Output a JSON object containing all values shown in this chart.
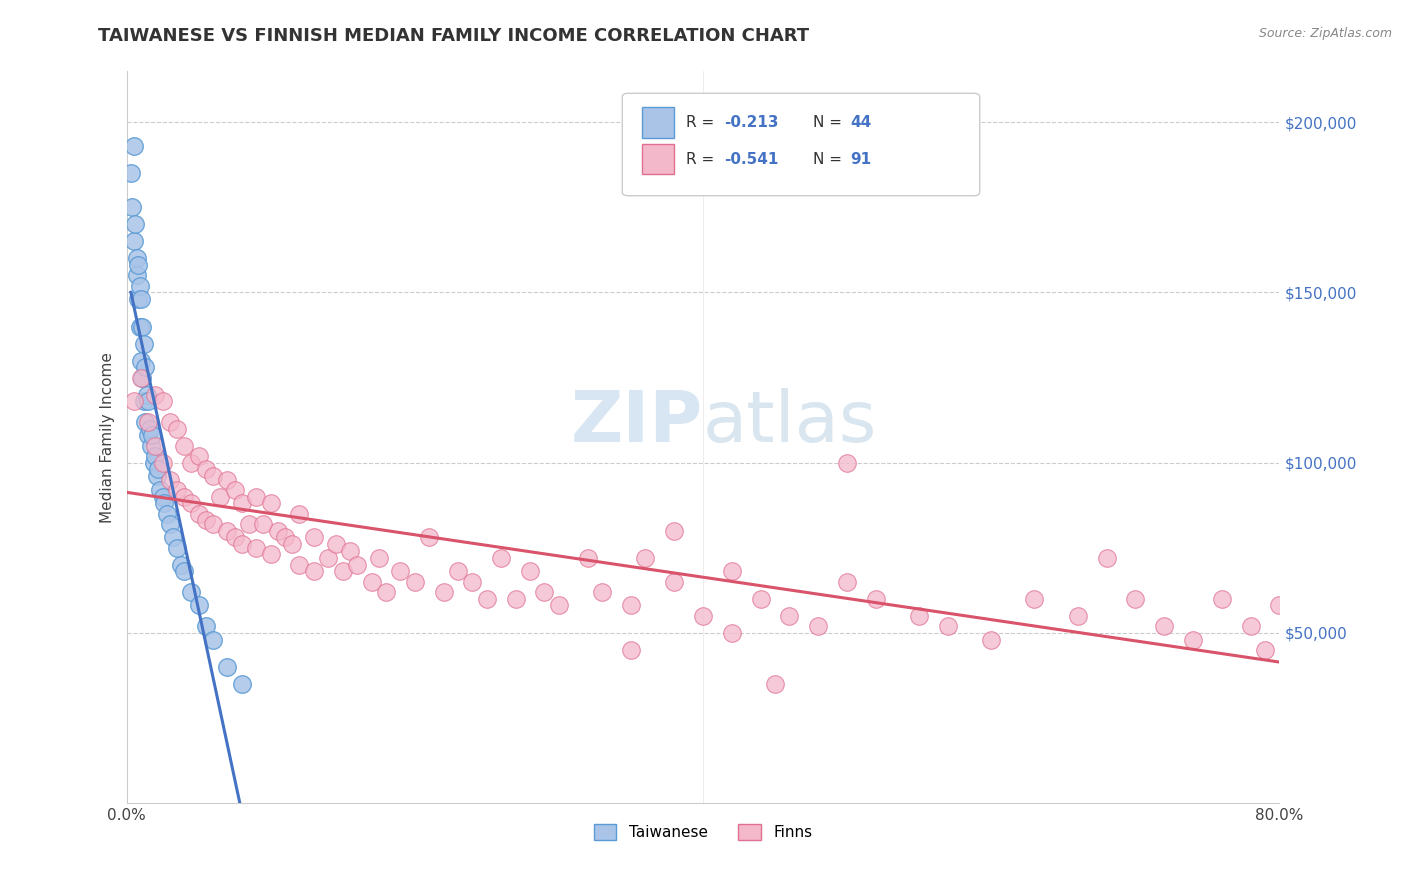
{
  "title": "TAIWANESE VS FINNISH MEDIAN FAMILY INCOME CORRELATION CHART",
  "source": "Source: ZipAtlas.com",
  "ylabel": "Median Family Income",
  "x_min": 0.0,
  "x_max": 80.0,
  "y_min": 0,
  "y_max": 215000,
  "y_ticks": [
    0,
    50000,
    100000,
    150000,
    200000
  ],
  "x_tick_left": "0.0%",
  "x_tick_right": "80.0%",
  "taiwanese_color": "#aac4e8",
  "finns_color": "#f4b8cb",
  "taiwanese_edge": "#5b9bd5",
  "finns_edge": "#e07090",
  "regression_blue_color": "#4472c4",
  "regression_pink_color": "#d9536a",
  "watermark_zip": "ZIP",
  "watermark_atlas": "atlas",
  "legend_R_taiwanese": "-0.213",
  "legend_N_taiwanese": "44",
  "legend_R_finns": "-0.541",
  "legend_N_finns": "91",
  "background_color": "#ffffff",
  "grid_color": "#cccccc",
  "taiwanese_scatter_x": [
    0.3,
    0.4,
    0.5,
    0.5,
    0.6,
    0.7,
    0.7,
    0.8,
    0.8,
    0.9,
    0.9,
    1.0,
    1.0,
    1.1,
    1.1,
    1.2,
    1.2,
    1.3,
    1.3,
    1.4,
    1.5,
    1.5,
    1.6,
    1.7,
    1.8,
    1.9,
    2.0,
    2.1,
    2.2,
    2.3,
    2.5,
    2.6,
    2.8,
    3.0,
    3.2,
    3.5,
    3.8,
    4.0,
    4.5,
    5.0,
    5.5,
    6.0,
    7.0,
    8.0
  ],
  "taiwanese_scatter_y": [
    185000,
    175000,
    193000,
    165000,
    170000,
    160000,
    155000,
    158000,
    148000,
    152000,
    140000,
    148000,
    130000,
    140000,
    125000,
    135000,
    118000,
    128000,
    112000,
    120000,
    118000,
    108000,
    110000,
    105000,
    108000,
    100000,
    102000,
    96000,
    98000,
    92000,
    90000,
    88000,
    85000,
    82000,
    78000,
    75000,
    70000,
    68000,
    62000,
    58000,
    52000,
    48000,
    40000,
    35000
  ],
  "finns_scatter_x": [
    0.5,
    1.0,
    1.5,
    2.0,
    2.0,
    2.5,
    2.5,
    3.0,
    3.0,
    3.5,
    3.5,
    4.0,
    4.0,
    4.5,
    4.5,
    5.0,
    5.0,
    5.5,
    5.5,
    6.0,
    6.0,
    6.5,
    7.0,
    7.0,
    7.5,
    7.5,
    8.0,
    8.0,
    8.5,
    9.0,
    9.0,
    9.5,
    10.0,
    10.0,
    10.5,
    11.0,
    11.5,
    12.0,
    12.0,
    13.0,
    13.0,
    14.0,
    14.5,
    15.0,
    15.5,
    16.0,
    17.0,
    17.5,
    18.0,
    19.0,
    20.0,
    21.0,
    22.0,
    23.0,
    24.0,
    25.0,
    26.0,
    27.0,
    28.0,
    29.0,
    30.0,
    32.0,
    33.0,
    35.0,
    36.0,
    38.0,
    40.0,
    42.0,
    44.0,
    46.0,
    48.0,
    50.0,
    52.0,
    55.0,
    57.0,
    60.0,
    63.0,
    66.0,
    68.0,
    70.0,
    72.0,
    74.0,
    76.0,
    78.0,
    79.0,
    80.0,
    35.0,
    38.0,
    42.0,
    45.0,
    50.0
  ],
  "finns_scatter_y": [
    118000,
    125000,
    112000,
    120000,
    105000,
    118000,
    100000,
    112000,
    95000,
    110000,
    92000,
    105000,
    90000,
    100000,
    88000,
    102000,
    85000,
    98000,
    83000,
    96000,
    82000,
    90000,
    95000,
    80000,
    92000,
    78000,
    88000,
    76000,
    82000,
    90000,
    75000,
    82000,
    88000,
    73000,
    80000,
    78000,
    76000,
    85000,
    70000,
    78000,
    68000,
    72000,
    76000,
    68000,
    74000,
    70000,
    65000,
    72000,
    62000,
    68000,
    65000,
    78000,
    62000,
    68000,
    65000,
    60000,
    72000,
    60000,
    68000,
    62000,
    58000,
    72000,
    62000,
    58000,
    72000,
    65000,
    55000,
    68000,
    60000,
    55000,
    52000,
    65000,
    60000,
    55000,
    52000,
    48000,
    60000,
    55000,
    72000,
    60000,
    52000,
    48000,
    60000,
    52000,
    45000,
    58000,
    45000,
    80000,
    50000,
    35000,
    100000
  ]
}
